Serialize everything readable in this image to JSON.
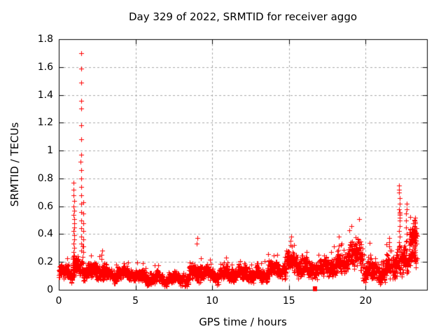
{
  "chart_data": {
    "type": "scatter",
    "title": "Day 329 of 2022, SRMTID for receiver aggo",
    "xlabel": "GPS time / hours",
    "ylabel": "SRMTID / TECUs",
    "xlim": [
      0,
      24
    ],
    "ylim": [
      0,
      1.8
    ],
    "xticks": [
      0,
      5,
      10,
      15,
      20
    ],
    "xtick_labels": [
      "0",
      "5",
      "10",
      "15",
      "20"
    ],
    "yticks": [
      0,
      0.2,
      0.4,
      0.6,
      0.8,
      1,
      1.2,
      1.4,
      1.6,
      1.8
    ],
    "ytick_labels": [
      "0",
      "0.2",
      "0.4",
      "0.6",
      "0.8",
      "1",
      "1.2",
      "1.4",
      "1.6",
      "1.8"
    ],
    "grid": true,
    "legend": "none",
    "marker": "plus",
    "marker_color": "#ff0000",
    "axis_color": "#000000",
    "grid_color": "#a8a8a8",
    "seed": 329,
    "band_segments": [
      {
        "x0": 0.0,
        "x1": 0.9,
        "base": 0.12,
        "spread": 0.05,
        "n": 90
      },
      {
        "x0": 0.9,
        "x1": 1.1,
        "base": 0.18,
        "spread": 0.09,
        "n": 30
      },
      {
        "x0": 1.1,
        "x1": 1.6,
        "base": 0.16,
        "spread": 0.08,
        "n": 45
      },
      {
        "x0": 1.6,
        "x1": 2.5,
        "base": 0.13,
        "spread": 0.06,
        "n": 80
      },
      {
        "x0": 2.5,
        "x1": 3.1,
        "base": 0.13,
        "spread": 0.07,
        "n": 55
      },
      {
        "x0": 3.1,
        "x1": 5.0,
        "base": 0.11,
        "spread": 0.05,
        "n": 170
      },
      {
        "x0": 5.0,
        "x1": 6.5,
        "base": 0.09,
        "spread": 0.045,
        "n": 130
      },
      {
        "x0": 6.5,
        "x1": 8.5,
        "base": 0.08,
        "spread": 0.04,
        "n": 170
      },
      {
        "x0": 8.5,
        "x1": 9.3,
        "base": 0.13,
        "spread": 0.07,
        "n": 70
      },
      {
        "x0": 9.3,
        "x1": 11.0,
        "base": 0.11,
        "spread": 0.05,
        "n": 150
      },
      {
        "x0": 11.0,
        "x1": 12.3,
        "base": 0.12,
        "spread": 0.06,
        "n": 115
      },
      {
        "x0": 12.3,
        "x1": 13.6,
        "base": 0.1,
        "spread": 0.05,
        "n": 115
      },
      {
        "x0": 13.6,
        "x1": 14.8,
        "base": 0.14,
        "spread": 0.06,
        "n": 105
      },
      {
        "x0": 14.8,
        "x1": 15.5,
        "base": 0.2,
        "spread": 0.09,
        "n": 65
      },
      {
        "x0": 15.5,
        "x1": 17.3,
        "base": 0.15,
        "spread": 0.07,
        "n": 155
      },
      {
        "x0": 17.3,
        "x1": 18.8,
        "base": 0.18,
        "spread": 0.08,
        "n": 130
      },
      {
        "x0": 18.8,
        "x1": 19.8,
        "base": 0.25,
        "spread": 0.12,
        "n": 90
      },
      {
        "x0": 19.8,
        "x1": 21.3,
        "base": 0.14,
        "spread": 0.09,
        "n": 130
      },
      {
        "x0": 21.3,
        "x1": 21.9,
        "base": 0.16,
        "spread": 0.1,
        "n": 55
      },
      {
        "x0": 21.9,
        "x1": 22.45,
        "base": 0.2,
        "spread": 0.12,
        "n": 50
      },
      {
        "x0": 22.45,
        "x1": 22.85,
        "base": 0.22,
        "spread": 0.1,
        "n": 40
      },
      {
        "x0": 22.85,
        "x1": 23.35,
        "base": 0.38,
        "spread": 0.1,
        "n": 50
      },
      {
        "x0": 22.85,
        "x1": 23.35,
        "base": 0.22,
        "spread": 0.08,
        "n": 25
      }
    ],
    "spike_columns": [
      {
        "x": 0.98,
        "ys": [
          0.77,
          0.72,
          0.68,
          0.64,
          0.6,
          0.57,
          0.54,
          0.51,
          0.48,
          0.45,
          0.42,
          0.39,
          0.36,
          0.33,
          0.3,
          0.27,
          0.24
        ]
      },
      {
        "x": 1.45,
        "ys": [
          1.7,
          1.59,
          1.49,
          1.36,
          1.3,
          1.18,
          1.08,
          0.97,
          0.92,
          0.86,
          0.8,
          0.74,
          0.68,
          0.62,
          0.56,
          0.5,
          0.44,
          0.38,
          0.33,
          0.28
        ]
      },
      {
        "x": 1.6,
        "ys": [
          0.63,
          0.55,
          0.48,
          0.42,
          0.36,
          0.31,
          0.27
        ]
      },
      {
        "x": 2.8,
        "ys": [
          0.28,
          0.25,
          0.22
        ]
      },
      {
        "x": 9.02,
        "ys": [
          0.37,
          0.33
        ]
      },
      {
        "x": 15.12,
        "ys": [
          0.38,
          0.35,
          0.32
        ]
      },
      {
        "x": 21.55,
        "ys": [
          0.37,
          0.34,
          0.31,
          0.28
        ]
      },
      {
        "x": 22.2,
        "ys": [
          0.75,
          0.72,
          0.7,
          0.66,
          0.62,
          0.58,
          0.56,
          0.55,
          0.54,
          0.52,
          0.5,
          0.46,
          0.42,
          0.38,
          0.34,
          0.3
        ]
      },
      {
        "x": 22.65,
        "ys": [
          0.62,
          0.58,
          0.55,
          0.5,
          0.45,
          0.4,
          0.35
        ]
      },
      {
        "x": 23.2,
        "ys": [
          0.52,
          0.5,
          0.48,
          0.46,
          0.44,
          0.42,
          0.4,
          0.38,
          0.36,
          0.34,
          0.32,
          0.3
        ]
      }
    ],
    "square_points": [
      [
        16.7,
        0.012
      ]
    ]
  }
}
